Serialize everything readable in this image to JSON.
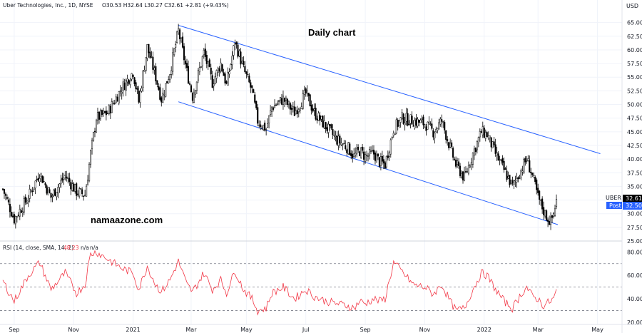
{
  "header": {
    "title": "Uber Technologies, Inc., 1D, NYSE",
    "ohlc": "O30.53 H32.64 L30.27 C32.61 +2.81 (+9.43%)"
  },
  "currency": "USD",
  "annotation_title": "Daily chart",
  "watermark": "namaazone.com",
  "ticker_label": {
    "symbol": "UBER",
    "last": "32.61",
    "post_label": "Post",
    "post_value": "32.50"
  },
  "rsi_header": {
    "label": "RSI (14, close, SMA, 14, 2)",
    "value": "48.23",
    "na1": "n/a",
    "na2": "n/a"
  },
  "colors": {
    "candle": "#000000",
    "channel": "#2962ff",
    "rsi": "#f23645",
    "post_bg": "#2962ff",
    "grid": "#787b86"
  },
  "chart_data": [
    {
      "type": "candlestick",
      "xlabel": "",
      "ylabel": "",
      "ylim": [
        25.0,
        66.0
      ],
      "y_ticks": [
        "25.00",
        "27.50",
        "30.00",
        "32.50",
        "35.00",
        "37.50",
        "40.00",
        "42.50",
        "45.00",
        "47.50",
        "50.00",
        "52.50",
        "55.00",
        "57.50",
        "60.00",
        "62.50",
        "65.00"
      ],
      "x_ticks": [
        "Sep",
        "Nov",
        "2021",
        "Mar",
        "May",
        "Jul",
        "Sep",
        "Nov",
        "2022",
        "Mar",
        "May"
      ],
      "x_tick_index": [
        8,
        50,
        92,
        133,
        172,
        214,
        256,
        298,
        340,
        378,
        420
      ],
      "n_bars": 392,
      "keypoints": [
        [
          0,
          34.5
        ],
        [
          8,
          29.0
        ],
        [
          18,
          33.0
        ],
        [
          26,
          37.5
        ],
        [
          34,
          33.0
        ],
        [
          44,
          37.0
        ],
        [
          52,
          34.0
        ],
        [
          58,
          33.5
        ],
        [
          60,
          37.0
        ],
        [
          62,
          41.0
        ],
        [
          66,
          47.5
        ],
        [
          74,
          48.5
        ],
        [
          84,
          53.0
        ],
        [
          92,
          56.0
        ],
        [
          96,
          50.5
        ],
        [
          102,
          60.5
        ],
        [
          108,
          55.0
        ],
        [
          112,
          51.0
        ],
        [
          118,
          56.0
        ],
        [
          124,
          63.5
        ],
        [
          130,
          56.0
        ],
        [
          134,
          51.5
        ],
        [
          142,
          59.5
        ],
        [
          148,
          54.0
        ],
        [
          154,
          57.5
        ],
        [
          158,
          53.5
        ],
        [
          164,
          61.5
        ],
        [
          170,
          56.5
        ],
        [
          176,
          52.5
        ],
        [
          180,
          47.0
        ],
        [
          186,
          45.5
        ],
        [
          190,
          49.5
        ],
        [
          198,
          51.0
        ],
        [
          206,
          48.5
        ],
        [
          214,
          52.0
        ],
        [
          220,
          48.5
        ],
        [
          228,
          46.0
        ],
        [
          236,
          43.5
        ],
        [
          244,
          42.0
        ],
        [
          248,
          40.5
        ],
        [
          252,
          41.5
        ],
        [
          256,
          40.5
        ],
        [
          262,
          41.0
        ],
        [
          266,
          39.5
        ],
        [
          270,
          39.0
        ],
        [
          276,
          45.5
        ],
        [
          282,
          47.5
        ],
        [
          290,
          47.0
        ],
        [
          298,
          46.5
        ],
        [
          304,
          45.0
        ],
        [
          310,
          47.0
        ],
        [
          316,
          42.0
        ],
        [
          320,
          39.0
        ],
        [
          326,
          36.5
        ],
        [
          332,
          41.0
        ],
        [
          338,
          45.0
        ],
        [
          342,
          44.5
        ],
        [
          348,
          41.0
        ],
        [
          354,
          38.0
        ],
        [
          360,
          35.0
        ],
        [
          366,
          38.0
        ],
        [
          370,
          40.0
        ],
        [
          374,
          37.0
        ],
        [
          378,
          33.0
        ],
        [
          382,
          30.5
        ],
        [
          384,
          29.5
        ],
        [
          387,
          28.5
        ],
        [
          389,
          30.0
        ],
        [
          391,
          32.61
        ]
      ],
      "channel_upper": {
        "from": [
          0.0,
          64.5
        ],
        "to": [
          1.0,
          41.0
        ],
        "x_from_index": 124,
        "x_to_index": 422
      },
      "channel_lower": {
        "from": [
          0.0,
          50.5
        ],
        "to": [
          1.0,
          28.0
        ],
        "x_from_index": 124,
        "x_to_index": 392
      },
      "last_close": 32.61
    },
    {
      "type": "line",
      "name": "RSI (14, close, SMA, 14, 2)",
      "ylim": [
        20,
        82
      ],
      "y_ticks": [
        "20.00",
        "40.00",
        "60.00",
        "80.00"
      ],
      "bands": [
        30,
        50,
        70
      ],
      "keypoints": [
        [
          0,
          55
        ],
        [
          8,
          38
        ],
        [
          18,
          60
        ],
        [
          26,
          71
        ],
        [
          34,
          48
        ],
        [
          44,
          62
        ],
        [
          52,
          45
        ],
        [
          58,
          52
        ],
        [
          60,
          66
        ],
        [
          62,
          78
        ],
        [
          66,
          80
        ],
        [
          74,
          74
        ],
        [
          84,
          66
        ],
        [
          92,
          62
        ],
        [
          96,
          48
        ],
        [
          102,
          68
        ],
        [
          108,
          52
        ],
        [
          112,
          46
        ],
        [
          118,
          56
        ],
        [
          124,
          72
        ],
        [
          130,
          52
        ],
        [
          134,
          46
        ],
        [
          142,
          62
        ],
        [
          148,
          48
        ],
        [
          154,
          56
        ],
        [
          158,
          45
        ],
        [
          164,
          64
        ],
        [
          170,
          48
        ],
        [
          176,
          40
        ],
        [
          180,
          30
        ],
        [
          186,
          32
        ],
        [
          190,
          45
        ],
        [
          198,
          50
        ],
        [
          206,
          40
        ],
        [
          214,
          48
        ],
        [
          220,
          42
        ],
        [
          228,
          38
        ],
        [
          236,
          36
        ],
        [
          244,
          34
        ],
        [
          248,
          32
        ],
        [
          252,
          38
        ],
        [
          256,
          36
        ],
        [
          262,
          40
        ],
        [
          266,
          38
        ],
        [
          270,
          40
        ],
        [
          276,
          71
        ],
        [
          282,
          63
        ],
        [
          290,
          52
        ],
        [
          298,
          50
        ],
        [
          304,
          44
        ],
        [
          310,
          52
        ],
        [
          316,
          38
        ],
        [
          320,
          30
        ],
        [
          326,
          32
        ],
        [
          332,
          48
        ],
        [
          338,
          62
        ],
        [
          342,
          60
        ],
        [
          348,
          48
        ],
        [
          354,
          38
        ],
        [
          360,
          32
        ],
        [
          366,
          44
        ],
        [
          370,
          50
        ],
        [
          374,
          42
        ],
        [
          378,
          40
        ],
        [
          382,
          34
        ],
        [
          384,
          36
        ],
        [
          387,
          38
        ],
        [
          389,
          40
        ],
        [
          391,
          48.23
        ]
      ]
    }
  ]
}
